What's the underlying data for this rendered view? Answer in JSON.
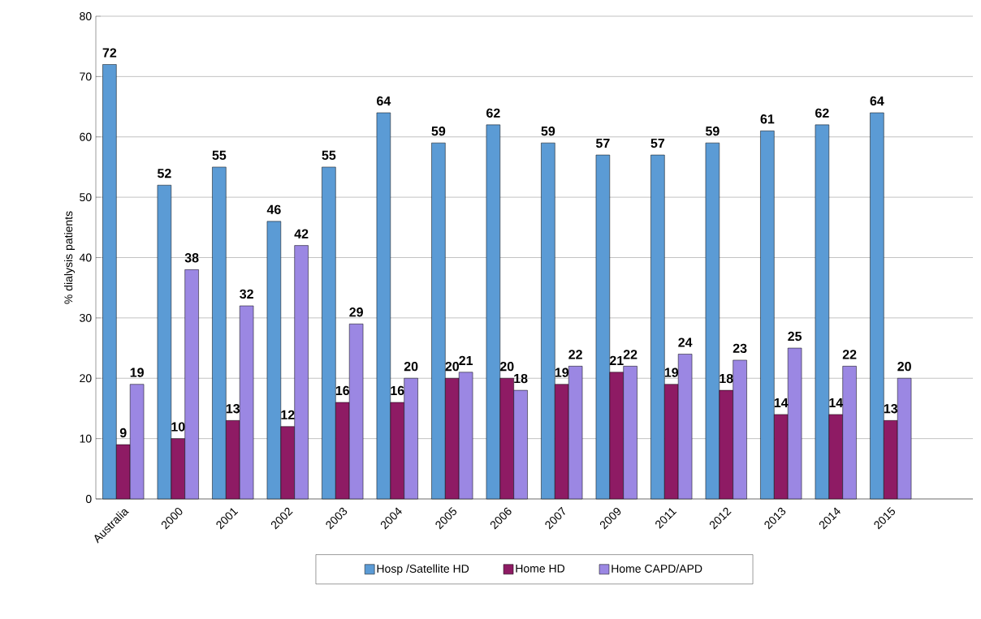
{
  "chart_data": {
    "type": "bar",
    "ylabel": "% dialysis patients",
    "categories": [
      "Australia",
      "2000",
      "2001",
      "2002",
      "2003",
      "2004",
      "2005",
      "2006",
      "2007",
      "2009",
      "2011",
      "2012",
      "2013",
      "2014",
      "2015"
    ],
    "series": [
      {
        "name": "Hosp /Satellite HD",
        "color": "#5b9bd5",
        "values": [
          72,
          52,
          55,
          46,
          55,
          64,
          59,
          62,
          59,
          57,
          57,
          59,
          61,
          62,
          64
        ]
      },
      {
        "name": "Home HD",
        "color": "#8e1b64",
        "values": [
          9,
          10,
          13,
          12,
          16,
          16,
          20,
          20,
          19,
          21,
          19,
          18,
          14,
          14,
          13
        ]
      },
      {
        "name": "Home CAPD/APD",
        "color": "#9b87e3",
        "values": [
          19,
          38,
          32,
          42,
          29,
          20,
          21,
          18,
          22,
          22,
          24,
          23,
          25,
          22,
          20
        ]
      }
    ],
    "ylim": [
      0,
      80
    ],
    "yticks": [
      0,
      10,
      20,
      30,
      40,
      50,
      60,
      70,
      80
    ],
    "grid": "y",
    "legend": "bottom",
    "data_labels": true
  }
}
